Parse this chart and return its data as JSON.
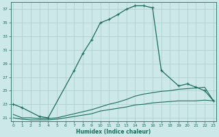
{
  "xlabel": "Humidex (Indice chaleur)",
  "background_color": "#cce8e8",
  "grid_color": "#aacccc",
  "line_color": "#1a6b5a",
  "x_values": [
    0,
    1,
    2,
    3,
    4,
    5,
    6,
    7,
    8,
    9,
    10,
    11,
    12,
    13,
    14,
    15,
    16,
    17,
    18,
    19,
    20,
    21,
    22,
    23
  ],
  "series1": [
    23.0,
    22.5,
    null,
    21.2,
    21.0,
    null,
    null,
    28.0,
    30.5,
    32.5,
    35.0,
    35.5,
    36.2,
    37.0,
    37.5,
    37.5,
    37.2,
    28.0,
    null,
    25.7,
    26.0,
    25.5,
    25.0,
    23.5
  ],
  "series2": [
    21.5,
    21.0,
    21.0,
    20.9,
    20.9,
    21.0,
    21.3,
    21.6,
    21.9,
    22.2,
    22.6,
    23.0,
    23.3,
    23.7,
    24.2,
    24.5,
    24.7,
    24.9,
    25.0,
    25.2,
    25.3,
    25.4,
    25.5,
    23.5
  ],
  "series3": [
    21.0,
    20.8,
    20.7,
    20.7,
    20.7,
    20.8,
    21.0,
    21.2,
    21.4,
    21.6,
    22.0,
    22.2,
    22.4,
    22.6,
    22.9,
    23.0,
    23.2,
    23.3,
    23.4,
    23.5,
    23.5,
    23.5,
    23.6,
    23.5
  ],
  "ylim": [
    20.5,
    38.0
  ],
  "yticks": [
    21,
    23,
    25,
    27,
    29,
    31,
    33,
    35,
    37
  ],
  "xticks": [
    0,
    1,
    2,
    3,
    4,
    5,
    6,
    7,
    8,
    9,
    10,
    11,
    12,
    13,
    14,
    15,
    16,
    17,
    18,
    19,
    20,
    21,
    22,
    23
  ],
  "xlim": [
    -0.3,
    23.3
  ]
}
